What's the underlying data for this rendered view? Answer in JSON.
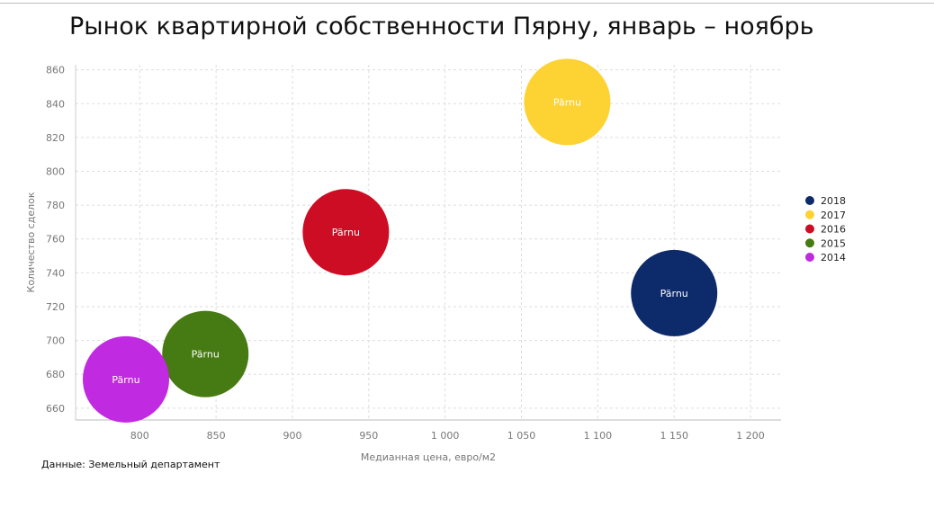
{
  "title": "Рынок квартирной собственности Пярну, январь – ноябрь",
  "source_note": "Данные: Земельный департамент",
  "chart_data": {
    "type": "scatter",
    "subtype": "bubble",
    "title": "Рынок квартирной собственности Пярну, январь – ноябрь",
    "xlabel": "Медианная цена, евро/м2",
    "ylabel": "Количество сделок",
    "xlim": [
      758,
      1220
    ],
    "ylim": [
      653,
      863
    ],
    "x_ticks": [
      800,
      850,
      900,
      950,
      1000,
      1050,
      1100,
      1150,
      1200
    ],
    "x_tick_labels": [
      "800",
      "850",
      "900",
      "950",
      "1 000",
      "1 050",
      "1 100",
      "1 150",
      "1 200"
    ],
    "y_ticks": [
      660,
      680,
      700,
      720,
      740,
      760,
      780,
      800,
      820,
      840,
      860
    ],
    "y_tick_labels": [
      "660",
      "680",
      "700",
      "720",
      "740",
      "760",
      "780",
      "800",
      "820",
      "840",
      "860"
    ],
    "grid": true,
    "legend_position": "right",
    "series": [
      {
        "name": "2018",
        "color": "#0d2a6b",
        "points": [
          {
            "x": 1150,
            "y": 728,
            "label": "Pärnu"
          }
        ]
      },
      {
        "name": "2017",
        "color": "#fdd233",
        "points": [
          {
            "x": 1080,
            "y": 841,
            "label": "Pärnu"
          }
        ]
      },
      {
        "name": "2016",
        "color": "#cc0d23",
        "points": [
          {
            "x": 935,
            "y": 764,
            "label": "Pärnu"
          }
        ]
      },
      {
        "name": "2015",
        "color": "#467a12",
        "points": [
          {
            "x": 843,
            "y": 692,
            "label": "Pärnu"
          }
        ]
      },
      {
        "name": "2014",
        "color": "#c02ae0",
        "points": [
          {
            "x": 791,
            "y": 677,
            "label": "Pärnu"
          }
        ]
      }
    ]
  }
}
